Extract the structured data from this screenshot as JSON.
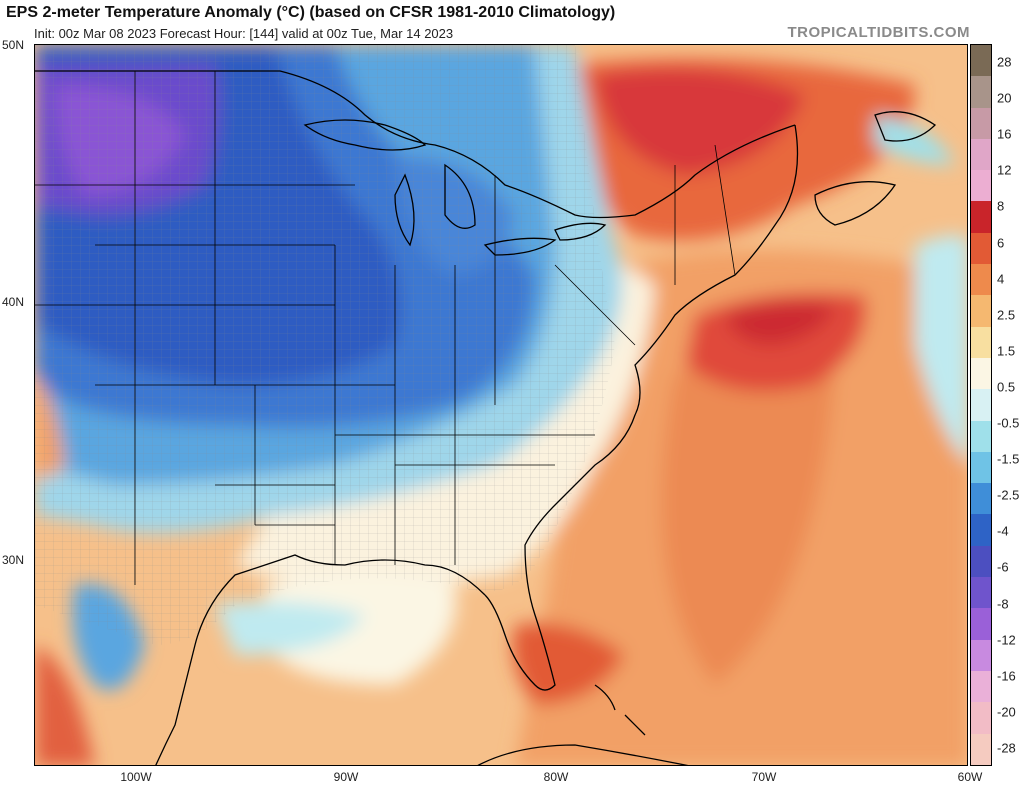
{
  "header": {
    "title": "EPS 2-meter Temperature Anomaly (°C) (based on CFSR 1981-2010 Climatology)",
    "subtitle": "Init: 00z Mar 08 2023   Forecast Hour: [144]   valid at 00z Tue, Mar 14 2023",
    "site": "TROPICALTIDBITS.COM"
  },
  "map": {
    "lat_labels": [
      "50N",
      "40N",
      "30N"
    ],
    "lon_labels": [
      "100W",
      "90W",
      "80W",
      "70W",
      "60W"
    ]
  },
  "colorbar": {
    "labels": [
      "28",
      "20",
      "16",
      "12",
      "8",
      "6",
      "4",
      "2.5",
      "1.5",
      "0.5",
      "-0.5",
      "-1.5",
      "-2.5",
      "-4",
      "-6",
      "-8",
      "-12",
      "-16",
      "-20",
      "-28"
    ],
    "colors": [
      "#7a6a55",
      "#a8948a",
      "#c79aa6",
      "#e0a6c8",
      "#ecaed2",
      "#c9242a",
      "#e25a35",
      "#ee8a4c",
      "#f5b870",
      "#f8dfa0",
      "#fbf6e4",
      "#d8f1f3",
      "#9fe0ea",
      "#6fc3e6",
      "#3f8ed8",
      "#2e63c6",
      "#4c4fc0",
      "#6f54cc",
      "#9a60d8",
      "#c88ae0",
      "#eab0d8",
      "#f2bcc6",
      "#f5cbc0"
    ]
  }
}
